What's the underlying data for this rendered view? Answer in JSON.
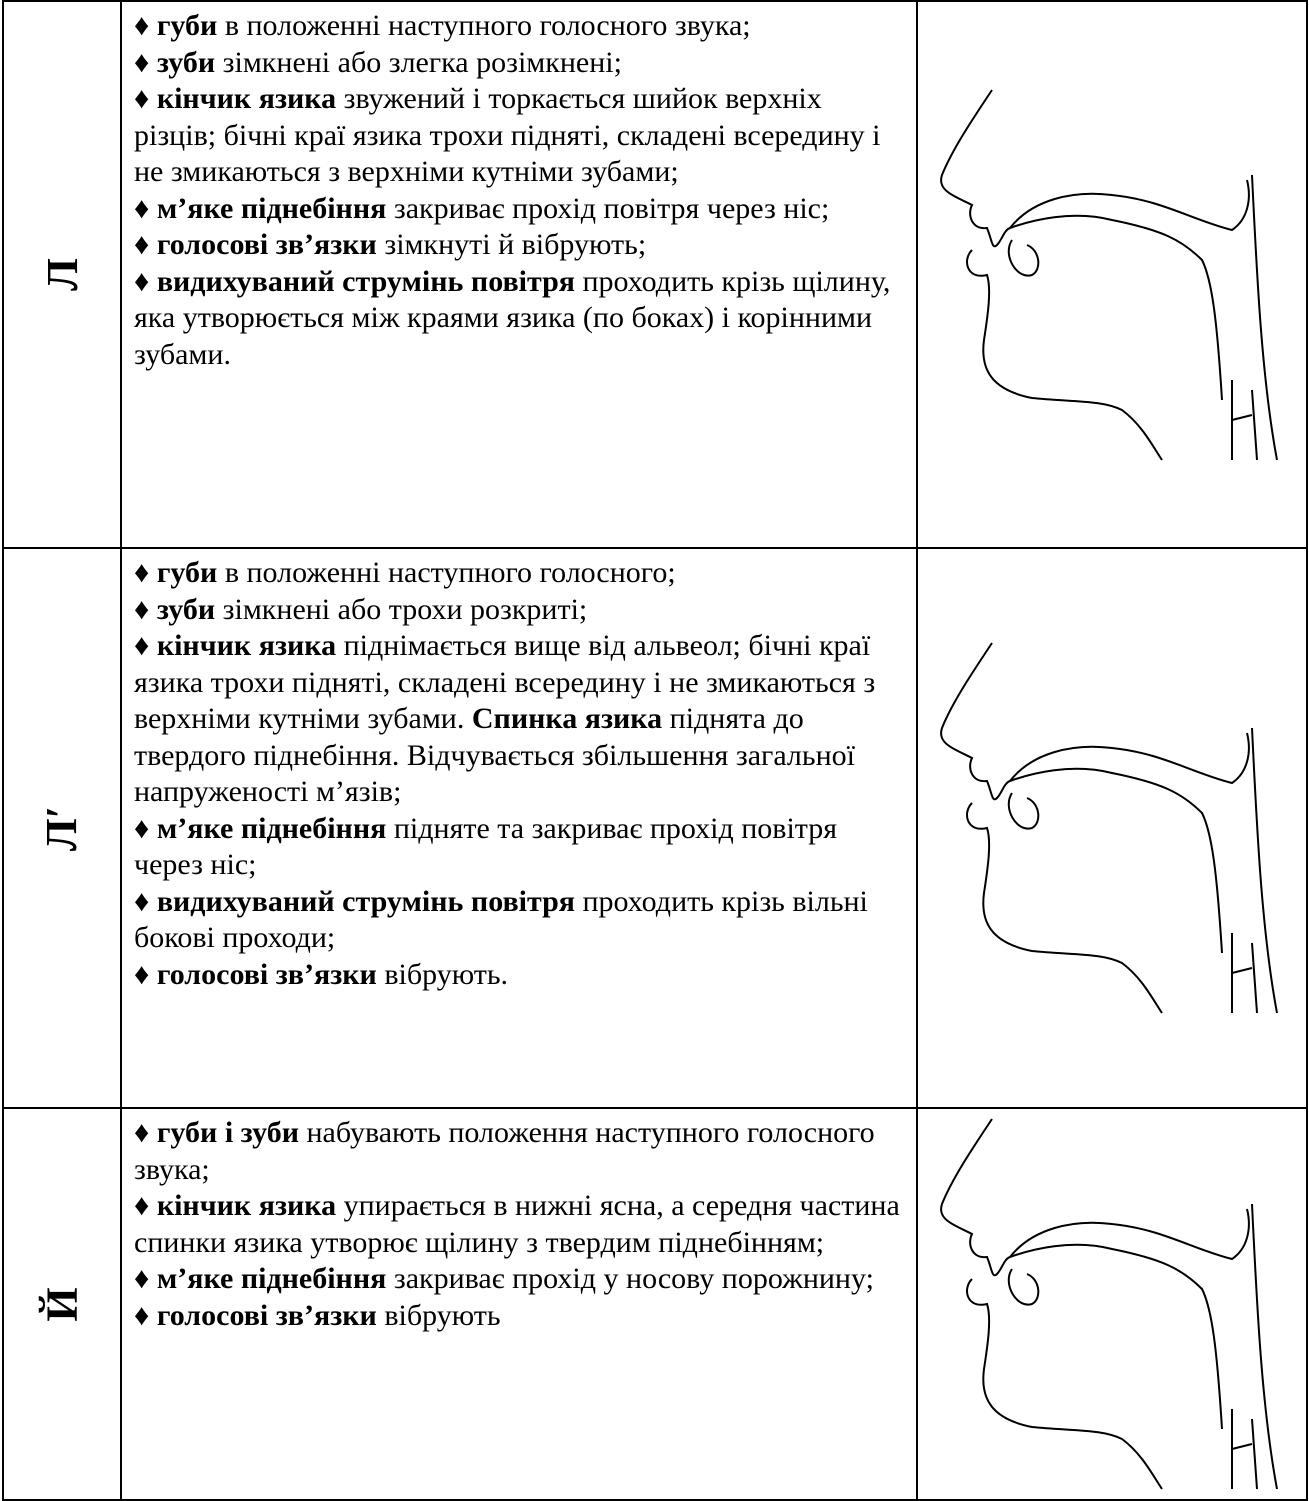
{
  "bullet": "♦",
  "table": {
    "rows": [
      {
        "letter": "Л",
        "items": [
          [
            {
              "bold": "губи"
            },
            {
              "text": " в положенні наступного голосного звука;"
            }
          ],
          [
            {
              "bold": "зуби"
            },
            {
              "text": " зімкнені або злегка розімкнені;"
            }
          ],
          [
            {
              "bold": "кінчик язика"
            },
            {
              "text": " звужений і торкається шийок верхніх різців; бічні краї язика трохи підняті, складені всередину і не змикаються з верхніми кутніми зубами;"
            }
          ],
          [
            {
              "bold": "м’яке піднебіння"
            },
            {
              "text": " закриває прохід повітря через ніс;"
            }
          ],
          [
            {
              "bold": "голосові зв’язки"
            },
            {
              "text": " зімкнуті й вібрують;"
            }
          ],
          [
            {
              "bold": "видихуваний струмінь повітря"
            },
            {
              "text": " проходить крізь щілину, яка утворюється між краями язика (по боках) і корінними зубами."
            }
          ]
        ]
      },
      {
        "letter": "Л′",
        "items": [
          [
            {
              "bold": "губи"
            },
            {
              "text": " в положенні наступного голосного;"
            }
          ],
          [
            {
              "bold": "зуби"
            },
            {
              "text": " зімкнені або трохи розкриті;"
            }
          ],
          [
            {
              "bold": "кінчик язика"
            },
            {
              "text": " піднімається вище від альвеол; бічні краї язика трохи підняті, складені всередину і не змикаються з верхніми кутніми зубами. "
            },
            {
              "bold": "Спинка язика"
            },
            {
              "text": " піднята до твердого піднебіння. Відчувається збільшення загальної напруженості м’язів;"
            }
          ],
          [
            {
              "bold": "м’яке піднебіння"
            },
            {
              "text": " підняте та закриває прохід повітря через ніс;"
            }
          ],
          [
            {
              "bold": "видихуваний струмінь повітря"
            },
            {
              "text": " проходить крізь вільні бокові проходи;"
            }
          ],
          [
            {
              "bold": "голосові зв’язки"
            },
            {
              "text": " вібрують."
            }
          ]
        ]
      },
      {
        "letter": "Й",
        "items": [
          [
            {
              "bold": "губи і зуби"
            },
            {
              "text": " набувають положення наступного голосного звука;"
            }
          ],
          [
            {
              "bold": "кінчик язика"
            },
            {
              "text": " упирається в нижні ясна, а середня частина спинки язика утворює щілину з твердим піднебінням;"
            }
          ],
          [
            {
              "bold": "м’яке піднебіння"
            },
            {
              "text": " закриває прохід у носову порожнину;"
            }
          ],
          [
            {
              "bold": "голосові зв’язки"
            },
            {
              "text": " вібрують"
            }
          ]
        ]
      }
    ]
  }
}
